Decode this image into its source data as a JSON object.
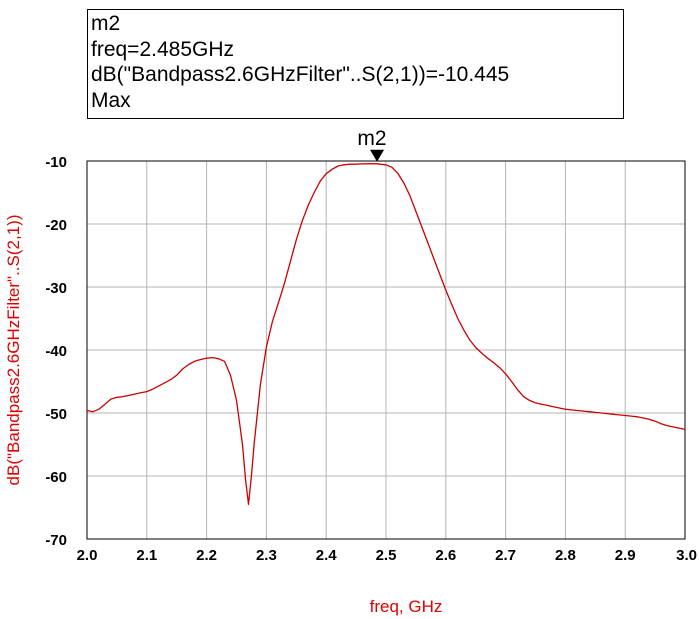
{
  "marker": {
    "name": "m2",
    "freq_line": "freq=2.485GHz",
    "value_line": "dB(\"Bandpass2.6GHzFilter\"..S(2,1))=-10.445",
    "mode_line": "Max",
    "x": 2.485,
    "y": -10.445
  },
  "chart_data": {
    "type": "line",
    "title": "",
    "xlabel": "freq, GHz",
    "ylabel": "dB(\"Bandpass2.6GHzFilter\"..S(2,1))",
    "xlim": [
      2.0,
      3.0
    ],
    "ylim": [
      -70,
      -10
    ],
    "x_ticks": [
      "2.0",
      "2.1",
      "2.2",
      "2.3",
      "2.4",
      "2.5",
      "2.6",
      "2.7",
      "2.8",
      "2.9",
      "3.0"
    ],
    "y_ticks": [
      "-10",
      "-20",
      "-30",
      "-40",
      "-50",
      "-60",
      "-70"
    ],
    "grid": true,
    "line_color": "#cc0000",
    "label_color": "#e00000",
    "series": [
      {
        "x": [
          2.0,
          2.01,
          2.02,
          2.03,
          2.04,
          2.05,
          2.06,
          2.07,
          2.08,
          2.09,
          2.1,
          2.11,
          2.12,
          2.13,
          2.14,
          2.15,
          2.16,
          2.17,
          2.18,
          2.19,
          2.2,
          2.21,
          2.22,
          2.23,
          2.24,
          2.25,
          2.26,
          2.265,
          2.27,
          2.275,
          2.28,
          2.29,
          2.3,
          2.31,
          2.32,
          2.33,
          2.34,
          2.35,
          2.36,
          2.37,
          2.38,
          2.39,
          2.4,
          2.41,
          2.42,
          2.43,
          2.44,
          2.45,
          2.46,
          2.47,
          2.48,
          2.485,
          2.49,
          2.5,
          2.51,
          2.52,
          2.53,
          2.54,
          2.55,
          2.56,
          2.57,
          2.58,
          2.59,
          2.6,
          2.61,
          2.62,
          2.63,
          2.64,
          2.65,
          2.66,
          2.67,
          2.68,
          2.69,
          2.7,
          2.71,
          2.72,
          2.73,
          2.74,
          2.75,
          2.76,
          2.77,
          2.78,
          2.79,
          2.8,
          2.81,
          2.82,
          2.83,
          2.84,
          2.85,
          2.86,
          2.87,
          2.88,
          2.89,
          2.9,
          2.91,
          2.92,
          2.93,
          2.94,
          2.95,
          2.96,
          2.97,
          2.98,
          2.99,
          3.0
        ],
        "values": [
          -49.6,
          -49.8,
          -49.4,
          -48.6,
          -47.8,
          -47.5,
          -47.4,
          -47.2,
          -47.0,
          -46.8,
          -46.6,
          -46.2,
          -45.7,
          -45.2,
          -44.7,
          -44.0,
          -43.0,
          -42.3,
          -41.8,
          -41.5,
          -41.3,
          -41.2,
          -41.4,
          -41.8,
          -44.0,
          -48.0,
          -55.0,
          -60.5,
          -64.5,
          -60.0,
          -54.5,
          -45.5,
          -39.5,
          -35.5,
          -32.5,
          -29.5,
          -26.0,
          -22.5,
          -19.5,
          -17.0,
          -15.0,
          -13.2,
          -12.0,
          -11.3,
          -10.8,
          -10.6,
          -10.5,
          -10.5,
          -10.46,
          -10.45,
          -10.45,
          -10.445,
          -10.5,
          -10.6,
          -11.0,
          -12.0,
          -13.5,
          -15.5,
          -18.0,
          -20.5,
          -23.0,
          -25.5,
          -28.0,
          -30.5,
          -32.8,
          -35.0,
          -36.8,
          -38.4,
          -39.6,
          -40.5,
          -41.3,
          -42.0,
          -42.8,
          -43.8,
          -45.0,
          -46.3,
          -47.4,
          -48.0,
          -48.4,
          -48.6,
          -48.8,
          -49.0,
          -49.2,
          -49.4,
          -49.5,
          -49.6,
          -49.7,
          -49.8,
          -49.9,
          -50.0,
          -50.1,
          -50.2,
          -50.3,
          -50.4,
          -50.5,
          -50.6,
          -50.8,
          -51.0,
          -51.3,
          -51.7,
          -52.0,
          -52.2,
          -52.4,
          -52.6
        ]
      }
    ]
  }
}
